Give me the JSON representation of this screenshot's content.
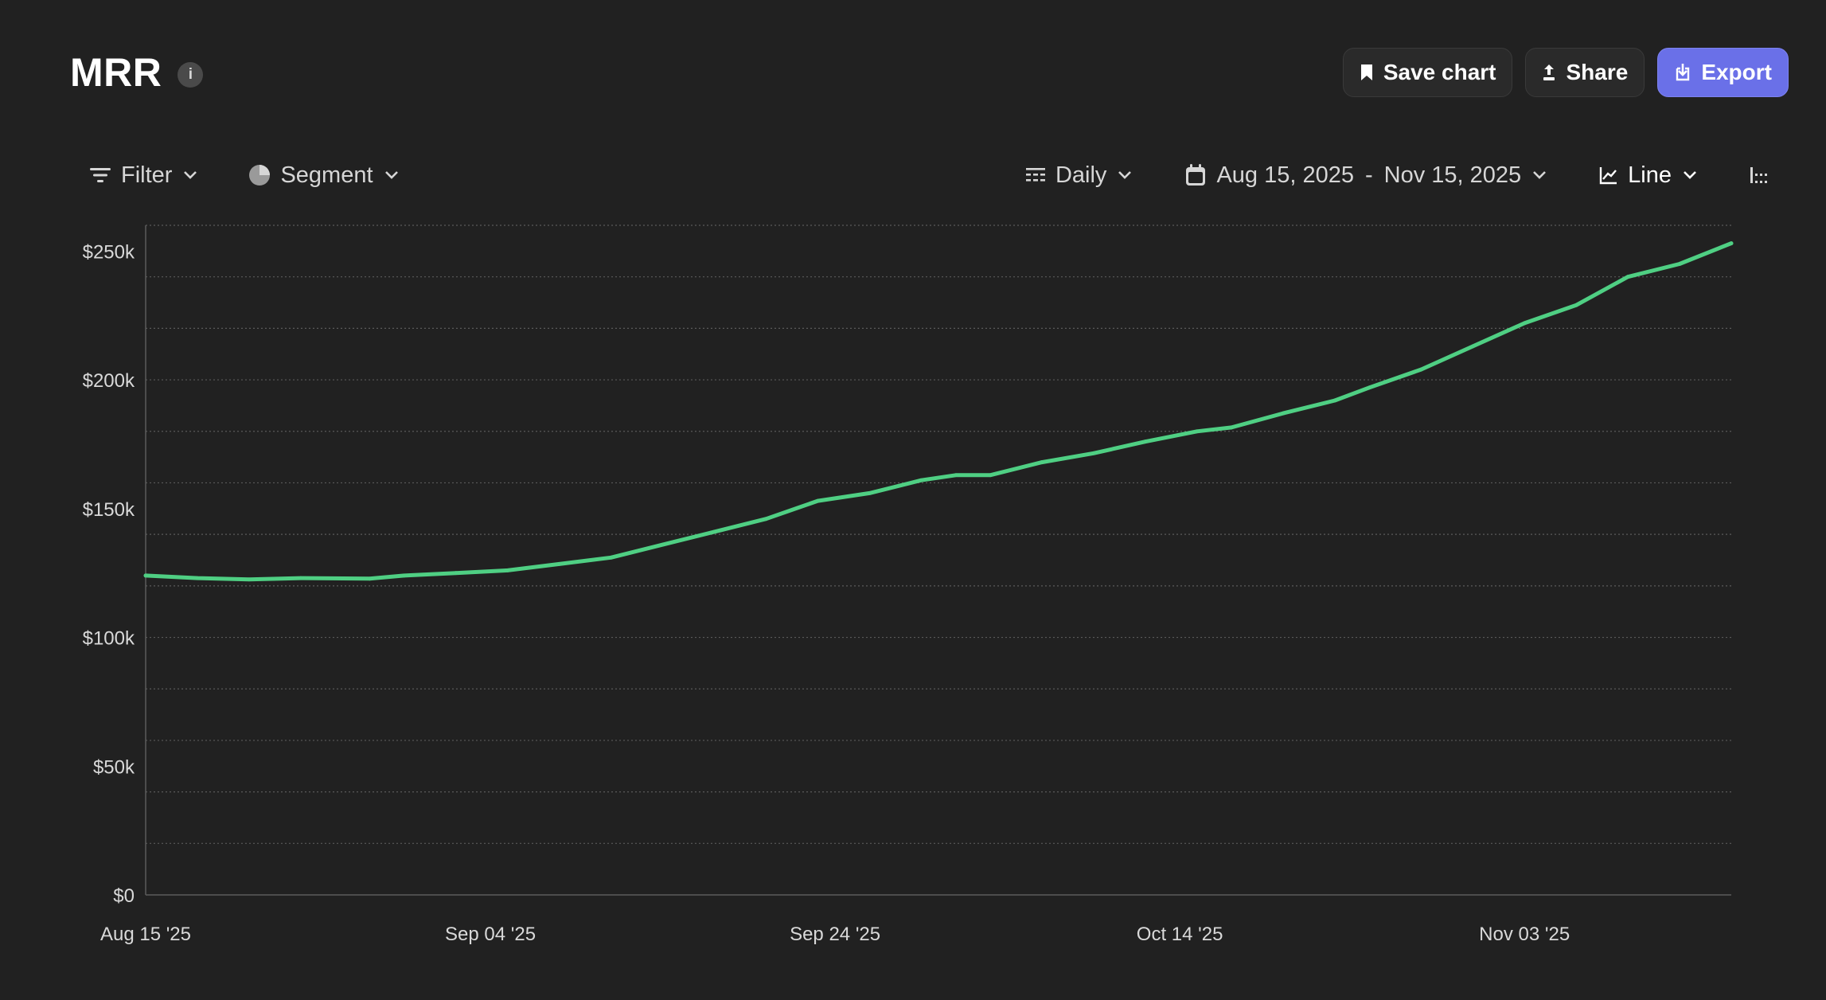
{
  "header": {
    "title": "MRR",
    "info_icon": "info-icon"
  },
  "actions": {
    "save_label": "Save chart",
    "share_label": "Share",
    "export_label": "Export"
  },
  "toolbar": {
    "filter_label": "Filter",
    "segment_label": "Segment",
    "interval_label": "Daily",
    "date_start": "Aug 15, 2025",
    "date_sep": "-",
    "date_end": "Nov 15, 2025",
    "chart_type_label": "Line"
  },
  "colors": {
    "background": "#212121",
    "line": "#4fcf83",
    "accent": "#6a70e8",
    "grid": "#5a5a5a"
  },
  "chart_data": {
    "type": "line",
    "title": "MRR",
    "xlabel": "",
    "ylabel": "",
    "ylim": [
      0,
      260000
    ],
    "yticks": [
      0,
      50000,
      100000,
      150000,
      200000,
      250000
    ],
    "ytick_labels": [
      "$0",
      "$50k",
      "$100k",
      "$150k",
      "$200k",
      "$250k"
    ],
    "xticks": [
      "2025-08-15",
      "2025-09-04",
      "2025-09-24",
      "2025-10-14",
      "2025-11-03"
    ],
    "xtick_labels": [
      "Aug 15 '25",
      "Sep 04 '25",
      "Sep 24 '25",
      "Oct 14 '25",
      "Nov 03 '25"
    ],
    "xlim": [
      "2025-08-15",
      "2025-11-15"
    ],
    "grid": true,
    "legend": "none",
    "series": [
      {
        "values": [
          {
            "x": "2025-08-15",
            "y": 124000
          },
          {
            "x": "2025-08-18",
            "y": 123000
          },
          {
            "x": "2025-08-21",
            "y": 122500
          },
          {
            "x": "2025-08-24",
            "y": 123000
          },
          {
            "x": "2025-08-28",
            "y": 122800
          },
          {
            "x": "2025-08-30",
            "y": 124000
          },
          {
            "x": "2025-09-02",
            "y": 125000
          },
          {
            "x": "2025-09-05",
            "y": 126000
          },
          {
            "x": "2025-09-08",
            "y": 128500
          },
          {
            "x": "2025-09-11",
            "y": 131000
          },
          {
            "x": "2025-09-14",
            "y": 136000
          },
          {
            "x": "2025-09-17",
            "y": 141000
          },
          {
            "x": "2025-09-20",
            "y": 146000
          },
          {
            "x": "2025-09-23",
            "y": 153000
          },
          {
            "x": "2025-09-26",
            "y": 156000
          },
          {
            "x": "2025-09-29",
            "y": 161000
          },
          {
            "x": "2025-10-01",
            "y": 163000
          },
          {
            "x": "2025-10-03",
            "y": 163000
          },
          {
            "x": "2025-10-06",
            "y": 168000
          },
          {
            "x": "2025-10-09",
            "y": 171500
          },
          {
            "x": "2025-10-12",
            "y": 176000
          },
          {
            "x": "2025-10-15",
            "y": 180000
          },
          {
            "x": "2025-10-17",
            "y": 181500
          },
          {
            "x": "2025-10-20",
            "y": 187000
          },
          {
            "x": "2025-10-23",
            "y": 192000
          },
          {
            "x": "2025-10-25",
            "y": 197000
          },
          {
            "x": "2025-10-28",
            "y": 204000
          },
          {
            "x": "2025-10-31",
            "y": 213000
          },
          {
            "x": "2025-11-03",
            "y": 222000
          },
          {
            "x": "2025-11-06",
            "y": 229000
          },
          {
            "x": "2025-11-09",
            "y": 240000
          },
          {
            "x": "2025-11-12",
            "y": 245000
          },
          {
            "x": "2025-11-15",
            "y": 253000
          }
        ]
      }
    ]
  }
}
